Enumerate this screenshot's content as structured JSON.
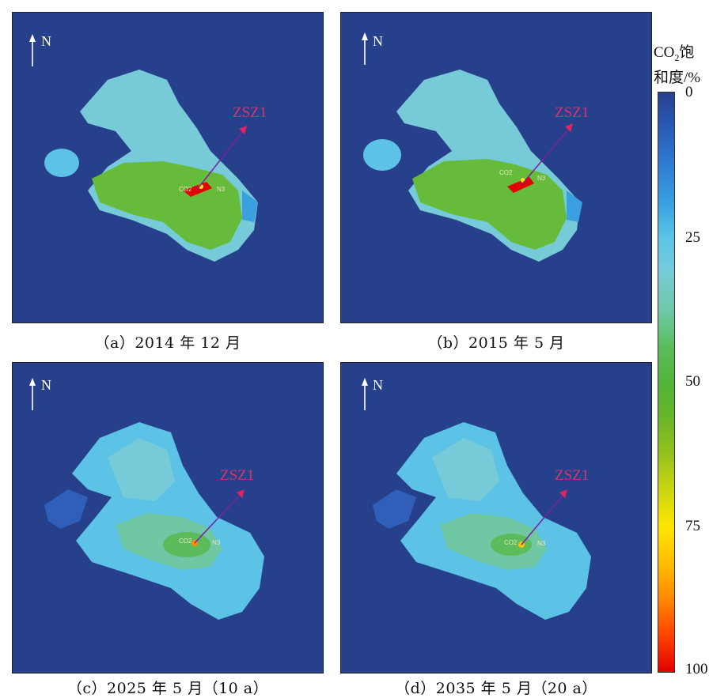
{
  "panels": [
    {
      "caption": "（a）2014 年 12 月",
      "well_label": "ZSZ1",
      "north_label": "N",
      "stage": 0
    },
    {
      "caption": "（b）2015 年 5 月",
      "well_label": "ZSZ1",
      "north_label": "N",
      "stage": 1
    },
    {
      "caption": "（c）2025 年 5 月（10 a）",
      "well_label": "ZSZ1",
      "north_label": "N",
      "stage": 2
    },
    {
      "caption": "（d）2035 年 5 月（20 a）",
      "well_label": "ZSZ1",
      "north_label": "N",
      "stage": 3
    }
  ],
  "colorbar": {
    "title_line1_prefix": "CO",
    "title_line1_sub": "2",
    "title_line1_suffix": "饱",
    "title_line2": "和度/%",
    "ticks": [
      "0",
      "25",
      "50",
      "75",
      "100"
    ]
  },
  "colors": {
    "background": "#27408c",
    "light_blue": "#5cc3e6",
    "cyan_blue": "#3aa0e0",
    "green": "#66bb3a",
    "red": "#e30000",
    "yellow": "#ffe600",
    "well_arrow": "#7b1fa2",
    "well_text": "#d8336b"
  }
}
